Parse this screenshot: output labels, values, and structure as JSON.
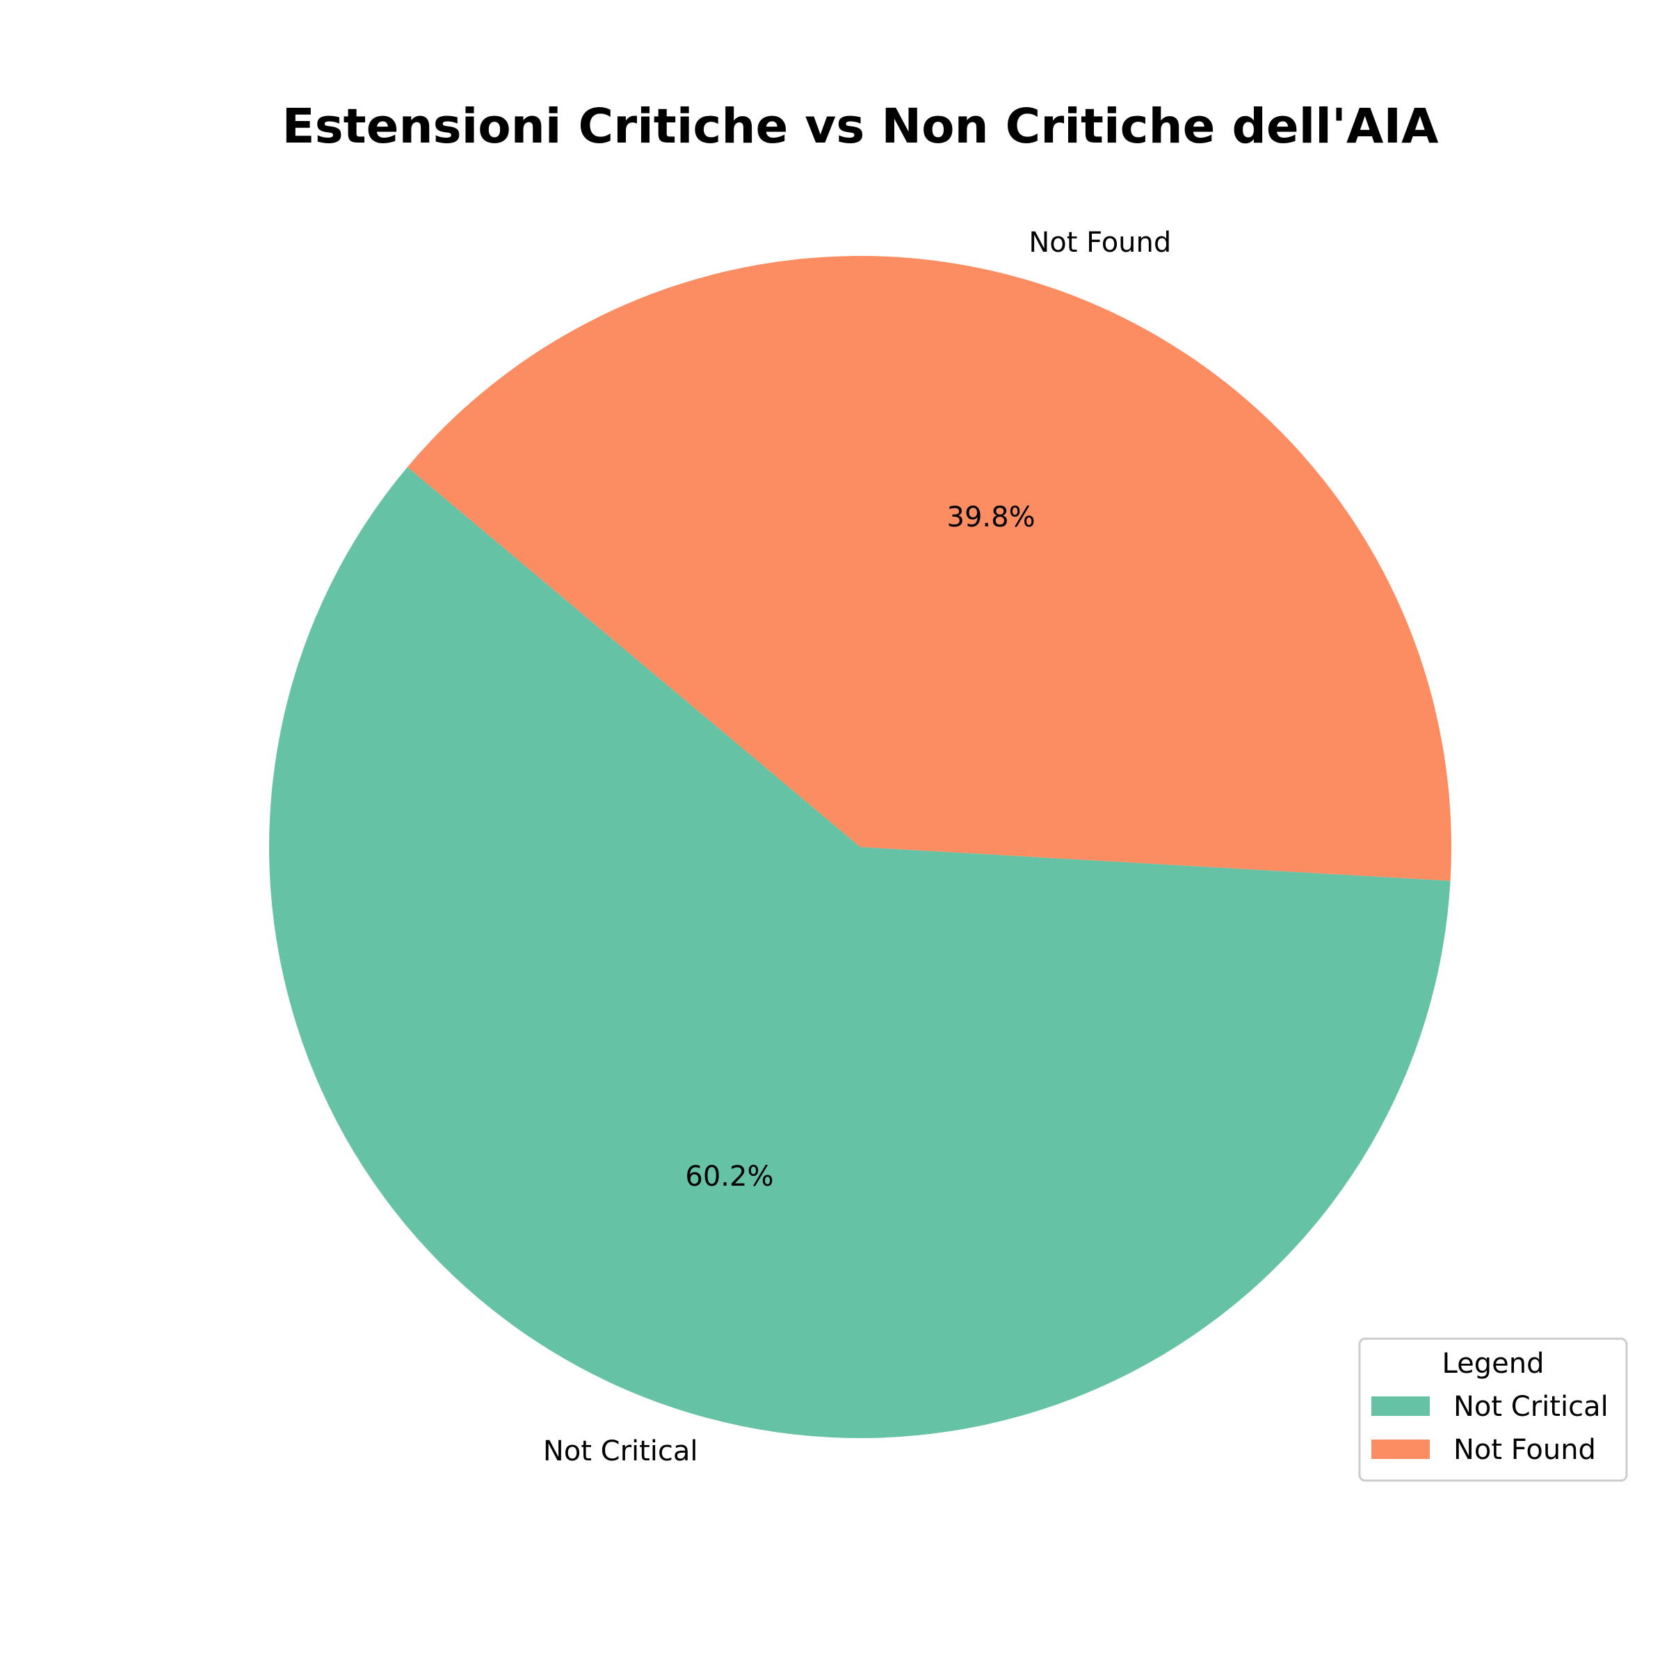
{
  "chart_data": {
    "type": "pie",
    "title": "Estensioni Critiche vs Non Critiche dell'AIA",
    "categories": [
      "Not Critical",
      "Not Found"
    ],
    "values": [
      60.2,
      39.8
    ],
    "value_labels": [
      "60.2%",
      "39.8%"
    ],
    "colors": [
      "#66c2a5",
      "#fc8d62"
    ],
    "legend": {
      "title": "Legend",
      "placement": "lower-right",
      "entries": [
        "Not Critical",
        "Not Found"
      ]
    },
    "grid": false
  }
}
